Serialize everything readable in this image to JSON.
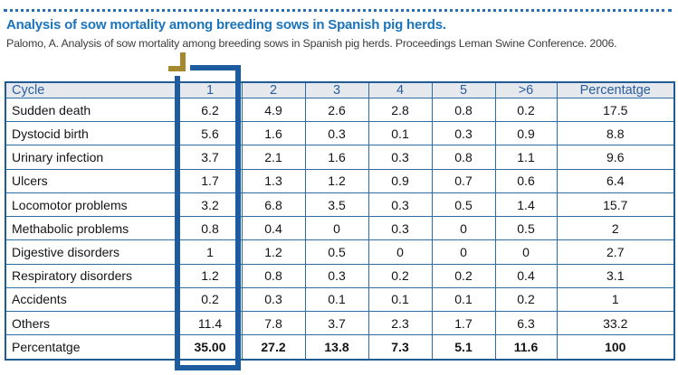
{
  "header": {
    "title": "Analysis of sow mortality among breeding sows in Spanish pig herds.",
    "citation": "Palomo, A. Analysis of sow mortality among breeding sows in Spanish pig herds. Proceedings Leman Swine Conference. 2006."
  },
  "table": {
    "columns": [
      "Cycle",
      "1",
      "2",
      "3",
      "4",
      "5",
      ">6",
      "Percentatge"
    ],
    "rows": [
      {
        "label": "Sudden death",
        "values": [
          "6.2",
          "4.9",
          "2.6",
          "2.8",
          "0.8",
          "0.2",
          "17.5"
        ]
      },
      {
        "label": "Dystocid birth",
        "values": [
          "5.6",
          "1.6",
          "0.3",
          "0.1",
          "0.3",
          "0.9",
          "8.8"
        ]
      },
      {
        "label": "Urinary infection",
        "values": [
          "3.7",
          "2.1",
          "1.6",
          "0.3",
          "0.8",
          "1.1",
          "9.6"
        ]
      },
      {
        "label": "Ulcers",
        "values": [
          "1.7",
          "1.3",
          "1.2",
          "0.9",
          "0.7",
          "0.6",
          "6.4"
        ]
      },
      {
        "label": "Locomotor problems",
        "values": [
          "3.2",
          "6.8",
          "3.5",
          "0.3",
          "0.5",
          "1.4",
          "15.7"
        ]
      },
      {
        "label": "Methabolic problems",
        "values": [
          "0.8",
          "0.4",
          "0",
          "0.3",
          "0",
          "0.5",
          "2"
        ]
      },
      {
        "label": "Digestive disorders",
        "values": [
          "1",
          "1.2",
          "0.5",
          "0",
          "0",
          "0",
          "2.7"
        ]
      },
      {
        "label": "Respiratory disorders",
        "values": [
          "1.2",
          "0.8",
          "0.3",
          "0.2",
          "0.2",
          "0.4",
          "3.1"
        ]
      },
      {
        "label": "Accidents",
        "values": [
          "0.2",
          "0.3",
          "0.1",
          "0.1",
          "0.1",
          "0.2",
          "1"
        ]
      },
      {
        "label": "Others",
        "values": [
          "11.4",
          "7.8",
          "3.7",
          "2.3",
          "1.7",
          "6.3",
          "33.2"
        ]
      },
      {
        "label": "Percentatge",
        "values": [
          "35.00",
          "27.2",
          "13.8",
          "7.3",
          "5.1",
          "11.6",
          "100"
        ],
        "bold": true
      }
    ],
    "highlighted_column": "1"
  },
  "colors": {
    "title_blue": "#1b74bc",
    "table_border": "#2e6da4",
    "table_outer_border": "#1f5c94",
    "header_row_bg": "#e5e9ee",
    "header_text": "#2a5d9f",
    "highlight_box": "#1d5c9e",
    "marker_gold": "#a58a2d",
    "body_text": "#141414"
  }
}
